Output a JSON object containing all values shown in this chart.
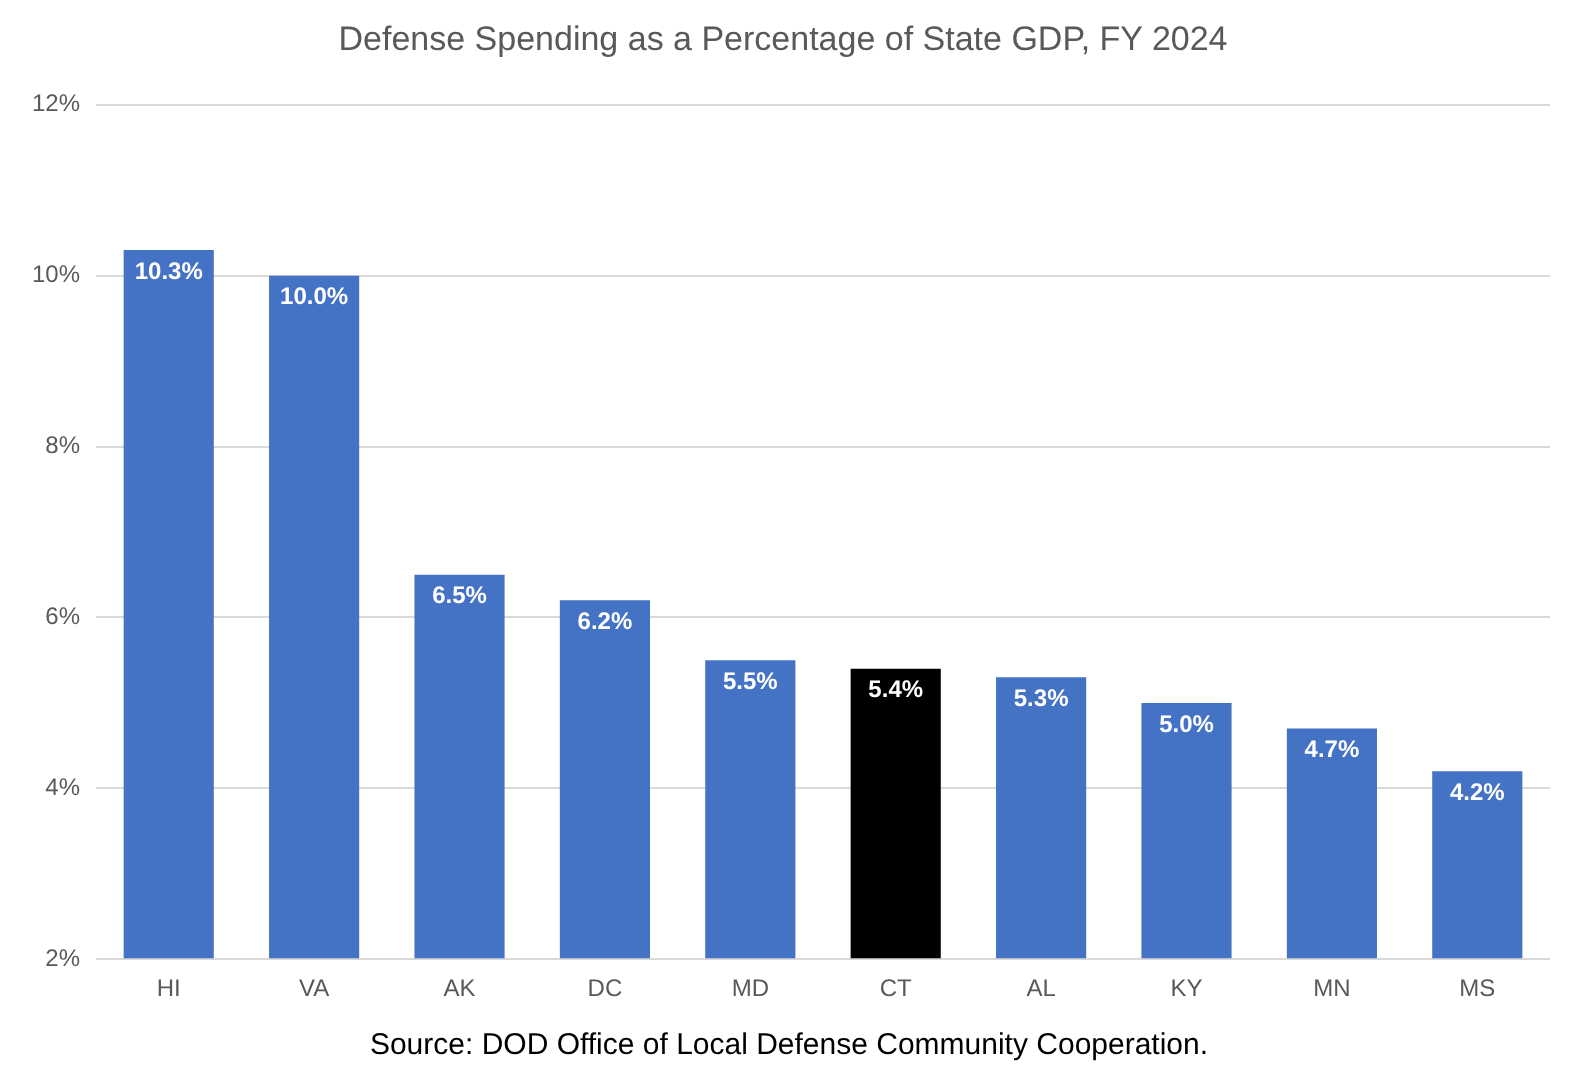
{
  "chart_data": {
    "type": "bar",
    "title": "Defense Spending as a Percentage of State GDP, FY 2024",
    "categories": [
      "HI",
      "VA",
      "AK",
      "DC",
      "MD",
      "CT",
      "AL",
      "KY",
      "MN",
      "MS"
    ],
    "values": [
      10.3,
      10.0,
      6.5,
      6.2,
      5.5,
      5.4,
      5.3,
      5.0,
      4.7,
      4.2
    ],
    "colors": [
      "#4472c4",
      "#4472c4",
      "#4472c4",
      "#4472c4",
      "#4472c4",
      "#000000",
      "#4472c4",
      "#4472c4",
      "#4472c4",
      "#4472c4"
    ],
    "value_labels": [
      "10.3%",
      "10.0%",
      "6.5%",
      "6.2%",
      "5.5%",
      "5.4%",
      "5.3%",
      "5.0%",
      "4.7%",
      "4.2%"
    ],
    "ylim": [
      2,
      12
    ],
    "yticks": [
      {
        "value": 2,
        "label": "2%"
      },
      {
        "value": 4,
        "label": "4%"
      },
      {
        "value": 6,
        "label": "6%"
      },
      {
        "value": 8,
        "label": "8%"
      },
      {
        "value": 10,
        "label": "10%"
      },
      {
        "value": 12,
        "label": "12%"
      }
    ],
    "grid": "y",
    "legend": false,
    "annotations": [
      "Source: DOD Office of Local Defense Community Cooperation."
    ]
  }
}
